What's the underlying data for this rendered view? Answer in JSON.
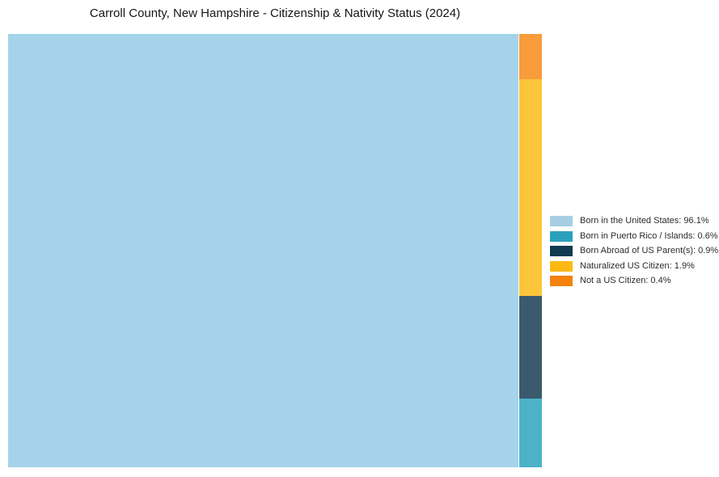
{
  "chart_data": {
    "type": "treemap",
    "title": "Carroll County, New Hampshire - Citizenship & Nativity Status (2024)",
    "unit": "%",
    "series": [
      {
        "label": "Born in the United States",
        "value": 96.1,
        "tile_color": "#a5d3e9",
        "legend_color": "#a6cee3"
      },
      {
        "label": "Born in Puerto Rico / Islands",
        "value": 0.6,
        "tile_color": "#4db2c7",
        "legend_color": "#2ba0bc"
      },
      {
        "label": "Born Abroad of US Parent(s)",
        "value": 0.9,
        "tile_color": "#3b5a6e",
        "legend_color": "#0f3a50"
      },
      {
        "label": "Naturalized US Citizen",
        "value": 1.9,
        "tile_color": "#fdc53a",
        "legend_color": "#fdb913"
      },
      {
        "label": "Not a US Citizen",
        "value": 0.4,
        "tile_color": "#f89c3c",
        "legend_color": "#f5820d"
      }
    ],
    "layout_hints": {
      "legend_position": "right",
      "large_tile_series": "Born in the United States",
      "minor_column_top_to_bottom": [
        "Not a US Citizen",
        "Naturalized US Citizen",
        "Born Abroad of US Parent(s)",
        "Born in Puerto Rico / Islands"
      ],
      "background": "#ffffff"
    }
  },
  "legend": {
    "items": [
      {
        "text": "Born in the United States: 96.1%",
        "color": "#a6cee3"
      },
      {
        "text": "Born in Puerto Rico / Islands: 0.6%",
        "color": "#2ba0bc"
      },
      {
        "text": "Born Abroad of US Parent(s): 0.9%",
        "color": "#0f3a50"
      },
      {
        "text": "Naturalized US Citizen: 1.9%",
        "color": "#fdb913"
      },
      {
        "text": "Not a US Citizen: 0.4%",
        "color": "#f5820d"
      }
    ]
  }
}
